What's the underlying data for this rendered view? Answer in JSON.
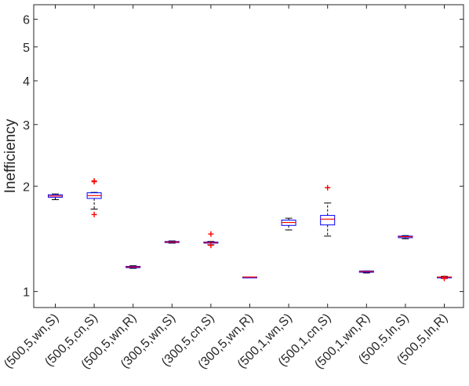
{
  "chart_data": {
    "type": "box",
    "title": "",
    "xlabel": "",
    "ylabel": "Inefficiency",
    "y_scale": "log",
    "ylim": [
      0.9,
      6.6
    ],
    "yticks": [
      1,
      2,
      3,
      4,
      5,
      6
    ],
    "ytick_labels": [
      "1",
      "2",
      "3",
      "4",
      "5",
      "6"
    ],
    "grid": false,
    "categories": [
      "(500,5,wn,S)",
      "(500,5,cn,S)",
      "(500,5,wn,R)",
      "(300,5,wn,S)",
      "(300,5,cn,S)",
      "(300,5,wn,R)",
      "(500,1,wn,S)",
      "(500,1,cn,S)",
      "(500,1,wn,R)",
      "(500,5,ln,S)",
      "(500,5,ln,R)"
    ],
    "boxes": [
      {
        "whisker_low": 1.83,
        "q1": 1.86,
        "median": 1.875,
        "q3": 1.89,
        "whisker_high": 1.9,
        "outliers": []
      },
      {
        "whisker_low": 1.72,
        "q1": 1.845,
        "median": 1.88,
        "q3": 1.915,
        "whisker_high": 1.92,
        "outliers": [
          2.06,
          2.07,
          1.66
        ]
      },
      {
        "whisker_low": 1.165,
        "q1": 1.17,
        "median": 1.175,
        "q3": 1.18,
        "whisker_high": 1.185,
        "outliers": []
      },
      {
        "whisker_low": 1.375,
        "q1": 1.38,
        "median": 1.385,
        "q3": 1.39,
        "whisker_high": 1.395,
        "outliers": []
      },
      {
        "whisker_low": 1.36,
        "q1": 1.375,
        "median": 1.38,
        "q3": 1.385,
        "whisker_high": 1.39,
        "outliers": [
          1.46,
          1.355
        ]
      },
      {
        "whisker_low": 1.1,
        "q1": 1.1,
        "median": 1.1,
        "q3": 1.1,
        "whisker_high": 1.1,
        "outliers": []
      },
      {
        "whisker_low": 1.5,
        "q1": 1.545,
        "median": 1.575,
        "q3": 1.6,
        "whisker_high": 1.62,
        "outliers": []
      },
      {
        "whisker_low": 1.44,
        "q1": 1.55,
        "median": 1.61,
        "q3": 1.65,
        "whisker_high": 1.79,
        "outliers": [
          1.98
        ]
      },
      {
        "whisker_low": 1.13,
        "q1": 1.135,
        "median": 1.14,
        "q3": 1.145,
        "whisker_high": 1.145,
        "outliers": []
      },
      {
        "whisker_low": 1.415,
        "q1": 1.425,
        "median": 1.435,
        "q3": 1.44,
        "whisker_high": 1.445,
        "outliers": []
      },
      {
        "whisker_low": 1.09,
        "q1": 1.095,
        "median": 1.1,
        "q3": 1.1,
        "whisker_high": 1.105,
        "outliers": [
          1.09
        ]
      }
    ],
    "colors": {
      "box": "#0000ff",
      "median": "#ff0000",
      "whisker": "#000000",
      "outlier": "#ff0000",
      "axis": "#262626"
    }
  }
}
